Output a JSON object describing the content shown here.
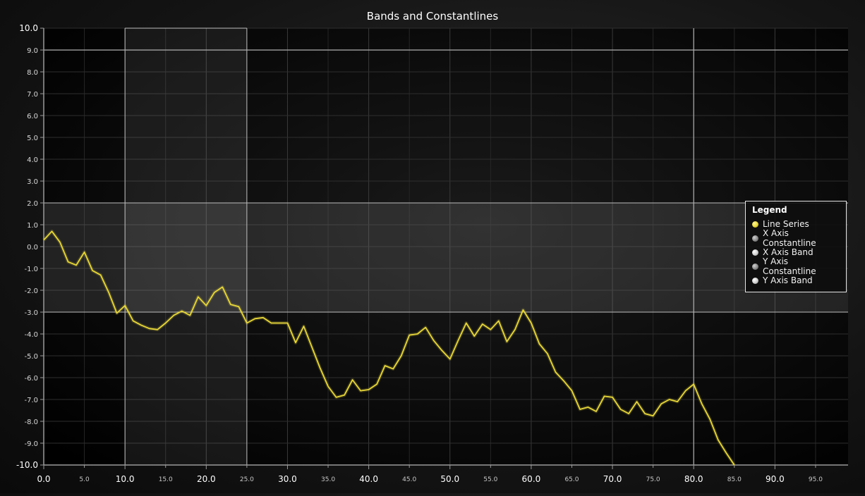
{
  "chart_data": {
    "type": "line",
    "title": "Bands and Constantlines",
    "xlim": [
      0,
      99
    ],
    "ylim": [
      -10,
      10
    ],
    "x_ticks_major": [
      0,
      10,
      20,
      30,
      40,
      50,
      60,
      70,
      80,
      90
    ],
    "x_ticks_minor": [
      5,
      15,
      25,
      35,
      45,
      55,
      65,
      75,
      85,
      95
    ],
    "y_ticks": [
      10,
      9,
      8,
      7,
      6,
      5,
      4,
      3,
      2,
      1,
      0,
      -1,
      -2,
      -3,
      -4,
      -5,
      -6,
      -7,
      -8,
      -9,
      -10
    ],
    "grid": true,
    "legend_position": "right",
    "legend_title": "Legend",
    "series": [
      {
        "name": "Line Series",
        "color": "#e8d83c",
        "x": [
          0,
          1,
          2,
          3,
          4,
          5,
          6,
          7,
          8,
          9,
          10,
          11,
          12,
          13,
          14,
          15,
          16,
          17,
          18,
          19,
          20,
          21,
          22,
          23,
          24,
          25,
          26,
          27,
          28,
          29,
          30,
          31,
          32,
          33,
          34,
          35,
          36,
          37,
          38,
          39,
          40,
          41,
          42,
          43,
          44,
          45,
          46,
          47,
          48,
          49,
          50,
          51,
          52,
          53,
          54,
          55,
          56,
          57,
          58,
          59,
          60,
          61,
          62,
          63,
          64,
          65,
          66,
          67,
          68,
          69,
          70,
          71,
          72,
          73,
          74,
          75,
          76,
          77,
          78,
          79,
          80,
          81,
          82,
          83,
          84,
          85
        ],
        "y": [
          0.3,
          0.7,
          0.2,
          -0.7,
          -0.85,
          -0.25,
          -1.1,
          -1.3,
          -2.1,
          -3.05,
          -2.7,
          -3.4,
          -3.6,
          -3.75,
          -3.8,
          -3.5,
          -3.15,
          -2.95,
          -3.15,
          -2.3,
          -2.7,
          -2.1,
          -1.85,
          -2.65,
          -2.75,
          -3.5,
          -3.3,
          -3.25,
          -3.5,
          -3.5,
          -3.5,
          -4.4,
          -3.65,
          -4.6,
          -5.55,
          -6.4,
          -6.9,
          -6.8,
          -6.1,
          -6.6,
          -6.55,
          -6.3,
          -5.45,
          -5.6,
          -5.0,
          -4.05,
          -4.0,
          -3.7,
          -4.3,
          -4.75,
          -5.15,
          -4.3,
          -3.5,
          -4.1,
          -3.55,
          -3.8,
          -3.4,
          -4.35,
          -3.8,
          -2.9,
          -3.5,
          -4.45,
          -4.9,
          -5.75,
          -6.15,
          -6.6,
          -7.45,
          -7.35,
          -7.55,
          -6.85,
          -6.9,
          -7.45,
          -7.65,
          -7.1,
          -7.65,
          -7.75,
          -7.2,
          -7.0,
          -7.1,
          -6.6,
          -6.3,
          -7.2,
          -7.9,
          -8.85,
          -9.45,
          -10.0
        ]
      }
    ],
    "x_axis_band": {
      "name": "X Axis Band",
      "from": 10,
      "to": 25,
      "color": "#c8c8c8"
    },
    "x_axis_constantline": {
      "name": "X Axis Constantline",
      "value": 80,
      "color": "#a0a0a0"
    },
    "y_axis_band": {
      "name": "Y Axis Band",
      "from": -3,
      "to": 2,
      "color": "#c8c8c8"
    },
    "y_axis_constantline": {
      "name": "Y Axis Constantline",
      "value": 9,
      "color": "#a0a0a0"
    },
    "legend_items": [
      {
        "label": "Line Series",
        "color": "#e8d83c"
      },
      {
        "label": "X Axis Constantline",
        "color": "#8a8a8a"
      },
      {
        "label": "X Axis Band",
        "color": "#cfcfcf"
      },
      {
        "label": "Y Axis Constantline",
        "color": "#8a8a8a"
      },
      {
        "label": "Y Axis Band",
        "color": "#cfcfcf"
      }
    ]
  }
}
